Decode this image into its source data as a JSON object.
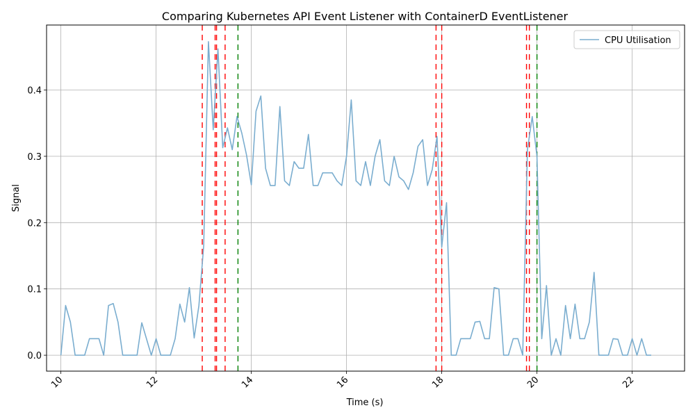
{
  "chart_data": {
    "type": "line",
    "title": "Comparing Kubernetes API Event Listener with ContainerD EventListener",
    "xlabel": "Time (s)",
    "ylabel": "Signal",
    "xlim": [
      9.7,
      23.1
    ],
    "ylim": [
      -0.024,
      0.498
    ],
    "xticks": [
      10,
      12,
      14,
      16,
      18,
      20,
      22
    ],
    "yticks": [
      0.0,
      0.1,
      0.2,
      0.3,
      0.4
    ],
    "ytick_labels": [
      "0.0",
      "0.1",
      "0.2",
      "0.3",
      "0.4"
    ],
    "grid": true,
    "legend_position": "top-right",
    "series": [
      {
        "name": "CPU Utilisation",
        "color": "#7aadcf",
        "x": [
          10.0,
          10.1,
          10.2,
          10.3,
          10.5,
          10.6,
          10.7,
          10.8,
          10.9,
          11.0,
          11.1,
          11.2,
          11.3,
          11.5,
          11.6,
          11.7,
          11.9,
          12.0,
          12.1,
          12.3,
          12.4,
          12.5,
          12.6,
          12.7,
          12.8,
          12.9,
          13.0,
          13.1,
          13.2,
          13.3,
          13.4,
          13.5,
          13.6,
          13.7,
          13.8,
          13.9,
          14.0,
          14.1,
          14.2,
          14.3,
          14.4,
          14.5,
          14.6,
          14.7,
          14.8,
          14.9,
          15.0,
          15.1,
          15.2,
          15.3,
          15.4,
          15.5,
          15.6,
          15.7,
          15.8,
          15.9,
          16.0,
          16.1,
          16.2,
          16.3,
          16.4,
          16.5,
          16.6,
          16.7,
          16.8,
          16.9,
          17.0,
          17.1,
          17.2,
          17.3,
          17.4,
          17.5,
          17.6,
          17.7,
          17.8,
          17.9,
          18.0,
          18.1,
          18.2,
          18.3,
          18.4,
          18.6,
          18.7,
          18.8,
          18.9,
          19.0,
          19.1,
          19.2,
          19.3,
          19.4,
          19.5,
          19.6,
          19.7,
          19.8,
          19.9,
          20.0,
          20.1,
          20.2,
          20.3,
          20.4,
          20.5,
          20.6,
          20.7,
          20.8,
          20.9,
          21.0,
          21.1,
          21.2,
          21.3,
          21.5,
          21.6,
          21.7,
          21.8,
          21.9,
          22.0,
          22.1,
          22.2,
          22.3,
          22.4
        ],
        "y": [
          0.0,
          0.075,
          0.05,
          0.0,
          0.0,
          0.025,
          0.025,
          0.025,
          0.0,
          0.075,
          0.078,
          0.05,
          0.0,
          0.0,
          0.0,
          0.049,
          0.0,
          0.025,
          0.0,
          0.0,
          0.025,
          0.077,
          0.05,
          0.102,
          0.026,
          0.075,
          0.165,
          0.473,
          0.34,
          0.462,
          0.313,
          0.343,
          0.31,
          0.36,
          0.335,
          0.302,
          0.257,
          0.368,
          0.391,
          0.282,
          0.256,
          0.256,
          0.375,
          0.263,
          0.256,
          0.292,
          0.282,
          0.282,
          0.333,
          0.256,
          0.256,
          0.275,
          0.275,
          0.275,
          0.263,
          0.256,
          0.3,
          0.385,
          0.263,
          0.256,
          0.292,
          0.256,
          0.3,
          0.325,
          0.263,
          0.256,
          0.3,
          0.269,
          0.263,
          0.25,
          0.275,
          0.315,
          0.325,
          0.256,
          0.28,
          0.33,
          0.163,
          0.23,
          0.0,
          0.0,
          0.025,
          0.025,
          0.05,
          0.051,
          0.025,
          0.025,
          0.102,
          0.1,
          0.0,
          0.0,
          0.025,
          0.025,
          0.0,
          0.31,
          0.36,
          0.3,
          0.025,
          0.105,
          0.0,
          0.025,
          0.0,
          0.075,
          0.025,
          0.077,
          0.025,
          0.025,
          0.05,
          0.125,
          0.0,
          0.0,
          0.025,
          0.024,
          0.0,
          0.0,
          0.025,
          0.0,
          0.025,
          0.0,
          0.0
        ]
      }
    ],
    "vlines": [
      {
        "x": 12.97,
        "color": "#ff0000"
      },
      {
        "x": 13.24,
        "color": "#ff0000"
      },
      {
        "x": 13.27,
        "color": "#ff0000"
      },
      {
        "x": 13.45,
        "color": "#ff0000"
      },
      {
        "x": 13.72,
        "color": "#008000"
      },
      {
        "x": 17.88,
        "color": "#ff0000"
      },
      {
        "x": 18.0,
        "color": "#ff0000"
      },
      {
        "x": 19.78,
        "color": "#ff0000"
      },
      {
        "x": 19.84,
        "color": "#ff0000"
      },
      {
        "x": 20.0,
        "color": "#008000"
      }
    ]
  }
}
